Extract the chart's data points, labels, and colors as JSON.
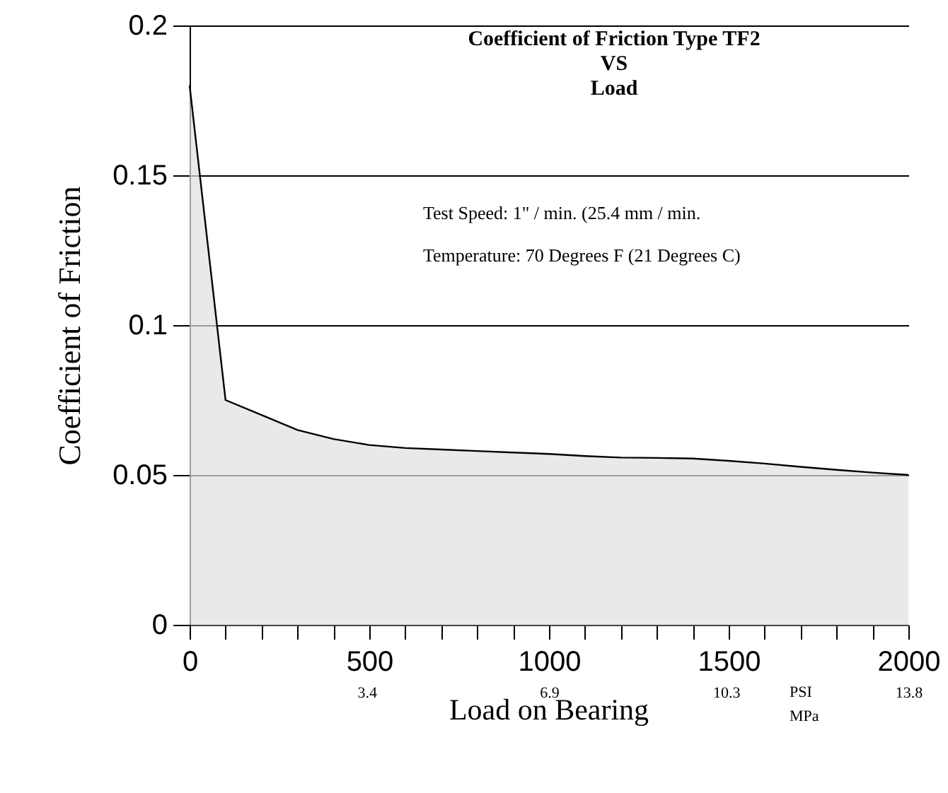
{
  "chart_data": {
    "type": "area",
    "title": "Coefficient of Friction Type TF2\nVS\nLoad",
    "annotations": [
      "Test Speed: 1\" / min.  (25.4 mm / min.",
      "Temperature: 70 Degrees F (21 Degrees C)"
    ],
    "xlabel": "Load on Bearing $^{PSI}$$_{MPa}$",
    "ylabel": "Coefficient of Friction",
    "x": [
      0,
      100,
      200,
      300,
      400,
      500,
      600,
      700,
      800,
      900,
      1000,
      1100,
      1200,
      1300,
      1400,
      1500,
      1600,
      1700,
      1800,
      1900,
      2000
    ],
    "series": [
      {
        "color": "#e0e0e0",
        "values": [
          0.18,
          0.075,
          0.07,
          0.065,
          0.062,
          0.06,
          0.059,
          0.0585,
          0.058,
          0.0575,
          0.057,
          0.0563,
          0.0558,
          0.0557,
          0.0555,
          0.0547,
          0.0538,
          0.0527,
          0.0517,
          0.0508,
          0.05
        ]
      }
    ],
    "xlim": [
      0,
      2000
    ],
    "xticks": [
      0,
      {
        "value": 100,
        "label": null
      },
      {
        "value": 200,
        "label": null
      },
      {
        "value": 300,
        "label": null
      },
      {
        "value": 400,
        "label": null
      },
      500,
      {
        "value": 600,
        "label": null
      },
      {
        "value": 700,
        "label": null
      },
      {
        "value": 800,
        "label": null
      },
      {
        "value": 900,
        "label": null
      },
      1000,
      {
        "value": 1100,
        "label": null
      },
      {
        "value": 1200,
        "label": null
      },
      {
        "value": 1300,
        "label": null
      },
      {
        "value": 1400,
        "label": null
      },
      1500,
      {
        "value": 1600,
        "label": null
      },
      {
        "value": 1700,
        "label": null
      },
      {
        "value": 1800,
        "label": null
      },
      {
        "value": 1900,
        "label": null
      },
      2000
    ],
    "x2lim": [
      0,
      13.8
    ],
    "x2ticks": [
      3.4,
      6.9,
      10.3,
      13.8
    ],
    "ylim": [
      0,
      0.2
    ],
    "yticks": [
      0,
      0.05,
      0.1,
      0.15,
      0.2
    ],
    "grid": "y"
  }
}
